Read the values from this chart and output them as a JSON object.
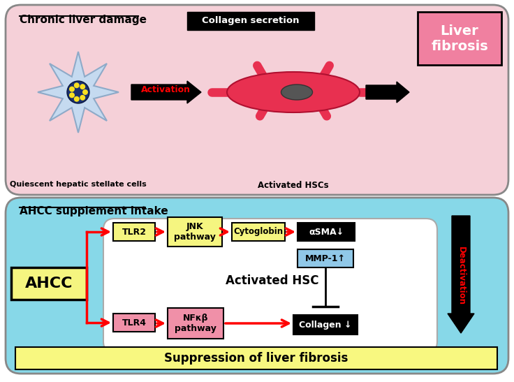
{
  "bg_color": "#ffffff",
  "top_panel_bg": "#f5d0d8",
  "bottom_panel_bg": "#87d8e8",
  "inner_box_bg": "#ffffff",
  "top_panel_label": "Chronic liver damage",
  "bottom_panel_label": "AHCC supplement intake",
  "collagen_secretion_label": "Collagen secretion",
  "liver_fibrosis_label": "Liver\nfibrosis",
  "activation_label": "Activation",
  "quiescent_label": "Quiescent hepatic stellate cells",
  "activated_hscs_label": "Activated HSCs",
  "ahcc_label": "AHCC",
  "tlr2_label": "TLR2",
  "tlr4_label": "TLR4",
  "jnk_label": "JNK\npathway",
  "nfkb_label": "NFκβ\npathway",
  "cytoglobin_label": "Cytoglobin",
  "asma_label": "αSMA↓",
  "mmp1_label": "MMP-1↑",
  "collagen_label": "Collagen ↓",
  "activated_hsc_label": "Activated HSC",
  "deactivation_label": "Deactivation",
  "suppression_label": "Suppression of liver fibrosis",
  "yellow_box_bg": "#f5f580",
  "pink_box_bg": "#f090a8",
  "blue_box_bg": "#90c8e8",
  "liver_fibrosis_bg": "#f080a0",
  "suppression_bar_bg": "#f8f880"
}
